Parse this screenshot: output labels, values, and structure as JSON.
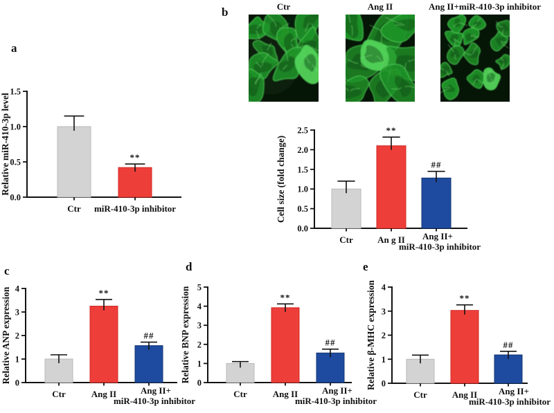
{
  "panels": {
    "a": {
      "letter": "a"
    },
    "b": {
      "letter": "b",
      "image_labels": [
        "Ctr",
        "Ang II",
        "Ang II+miR-410-3p inhibitor"
      ]
    },
    "c": {
      "letter": "c"
    },
    "d": {
      "letter": "d"
    },
    "e": {
      "letter": "e"
    }
  },
  "colors": {
    "gray": "#d3d3d3",
    "gray_edge": "#b8b8b8",
    "red": "#ee3e39",
    "red_edge": "#d02824",
    "blue": "#1e4b9f",
    "blue_edge": "#143570",
    "axis": "#111111",
    "image_bg": "#051506",
    "cell_green": "#1f9428",
    "cell_rim": "#52d35a",
    "cell_bright": "#7dee7d",
    "cell_dark": "#0b4a12",
    "haze": "#16351a"
  },
  "chart_data": [
    {
      "panel": "a",
      "type": "bar",
      "title": "",
      "ylabel": "Relative miR-410-3p level",
      "xlabel": "",
      "categories": [
        "Ctr",
        "miR-410-3p inhibitor"
      ],
      "values": [
        1.0,
        0.42
      ],
      "errors": [
        0.15,
        0.05
      ],
      "significance": [
        "",
        "**"
      ],
      "bar_colors": [
        "gray",
        "red"
      ],
      "ylim": [
        0,
        1.5
      ],
      "yticks": [
        "0.0",
        "0.5",
        "1.0",
        "1.5"
      ],
      "grid": false,
      "legend": false
    },
    {
      "panel": "b",
      "type": "bar",
      "title": "",
      "ylabel": "Cell size (fold change)",
      "xlabel": "",
      "categories": [
        "Ctr",
        "An g II",
        [
          "Ang II+",
          "miR-410-3p inhibitor"
        ]
      ],
      "values": [
        1.0,
        2.1,
        1.28
      ],
      "errors": [
        0.2,
        0.22,
        0.17
      ],
      "significance": [
        "",
        "**",
        "##"
      ],
      "bar_colors": [
        "gray",
        "red",
        "blue"
      ],
      "ylim": [
        0,
        2.5
      ],
      "yticks": [
        "0.0",
        "0.5",
        "1.0",
        "1.5",
        "2.0",
        "2.5"
      ],
      "grid": false,
      "legend": false
    },
    {
      "panel": "c",
      "type": "bar",
      "title": "",
      "ylabel": "Relative ANP expression",
      "xlabel": "",
      "categories": [
        "Ctr",
        "Ang II",
        [
          "Ang II+",
          "miR-410-3p inhibitor"
        ]
      ],
      "values": [
        1.0,
        3.25,
        1.57
      ],
      "errors": [
        0.18,
        0.28,
        0.15
      ],
      "significance": [
        "",
        "**",
        "##"
      ],
      "bar_colors": [
        "gray",
        "red",
        "blue"
      ],
      "ylim": [
        0,
        4
      ],
      "yticks": [
        "0",
        "1",
        "2",
        "3",
        "4"
      ],
      "grid": false,
      "legend": false
    },
    {
      "panel": "d",
      "type": "bar",
      "title": "",
      "ylabel": "Relative BNP expression",
      "xlabel": "",
      "categories": [
        "Ctr",
        "Ang II",
        [
          "Ang II+",
          "miR-410-3p inhibitor"
        ]
      ],
      "values": [
        1.0,
        3.92,
        1.55
      ],
      "errors": [
        0.1,
        0.2,
        0.2
      ],
      "significance": [
        "",
        "**",
        "##"
      ],
      "bar_colors": [
        "gray",
        "red",
        "blue"
      ],
      "ylim": [
        0,
        5
      ],
      "yticks": [
        "0",
        "1",
        "2",
        "3",
        "4",
        "5"
      ],
      "grid": false,
      "legend": false
    },
    {
      "panel": "e",
      "type": "bar",
      "title": "",
      "ylabel": "Relative β-MHC expression",
      "xlabel": "",
      "categories": [
        "Ctr",
        "Ang II",
        [
          "Ang II+",
          "miR-410-3p inhibitor"
        ]
      ],
      "values": [
        1.0,
        3.03,
        1.18
      ],
      "errors": [
        0.17,
        0.23,
        0.15
      ],
      "significance": [
        "",
        "**",
        "##"
      ],
      "bar_colors": [
        "gray",
        "red",
        "blue"
      ],
      "ylim": [
        0,
        4
      ],
      "yticks": [
        "0",
        "1",
        "2",
        "3",
        "4"
      ],
      "grid": false,
      "legend": false
    }
  ]
}
